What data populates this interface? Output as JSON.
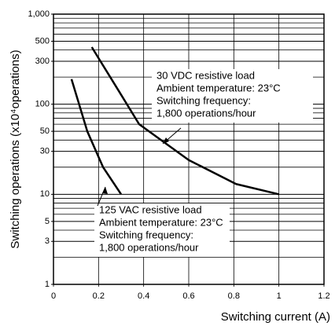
{
  "chart_data": {
    "type": "line",
    "xlabel": "Switching current (A)",
    "ylabel": "Switching operations (x10⁴operations)",
    "xlim": [
      0,
      1.2
    ],
    "xticks": [
      0,
      0.2,
      0.4,
      0.6,
      0.8,
      1,
      1.2
    ],
    "ylim": [
      1,
      1000
    ],
    "ylog": true,
    "yticks": [
      1,
      3,
      5,
      10,
      30,
      50,
      100,
      300,
      500,
      {
        "value": 1000,
        "label": "1,000"
      }
    ],
    "yminorticks": [
      2,
      4,
      6,
      7,
      8,
      9,
      20,
      40,
      60,
      70,
      80,
      90,
      200,
      400,
      600,
      700,
      800,
      900
    ],
    "grid": true,
    "series": [
      {
        "name": "30 VDC resistive load",
        "color": "#000000",
        "x": [
          0.17,
          0.29,
          0.38,
          0.6,
          0.81,
          1.0
        ],
        "values": [
          430,
          140,
          60,
          24,
          13,
          10
        ]
      },
      {
        "name": "125 VAC resistive load",
        "color": "#000000",
        "x": [
          0.08,
          0.15,
          0.22,
          0.3
        ],
        "values": [
          190,
          50,
          20,
          10
        ]
      }
    ],
    "annotations": [
      {
        "lines": [
          "30 VDC resistive load",
          "Ambient temperature: 23°C",
          "Switching frequency:",
          "1,800 operations/hour"
        ]
      },
      {
        "lines": [
          "125 VAC resistive load",
          "Ambient temperature: 23°C",
          "Switching frequency:",
          "1,800 operations/hour"
        ]
      }
    ]
  }
}
